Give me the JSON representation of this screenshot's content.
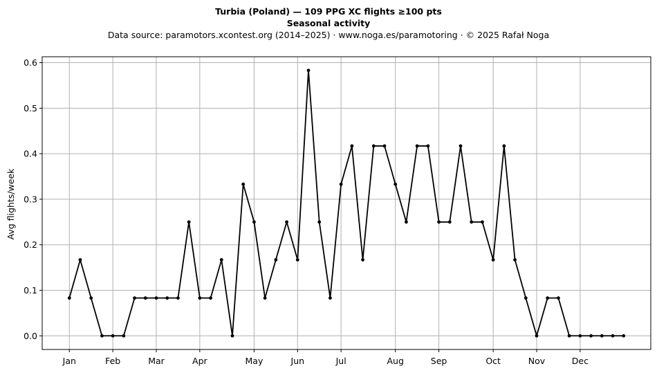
{
  "chart_data": {
    "type": "line",
    "title": "Turbia (Poland)  —  109 PPG XC flights ≥100 pts",
    "subtitle": "Seasonal activity",
    "source_line": "Data source: paramotors.xcontest.org (2014–2025)  ·  www.noga.es/paramotoring  ·  © 2025 Rafał Noga",
    "xlabel": "",
    "ylabel": "Avg flights/week",
    "x_unit": "week of year",
    "xlim": [
      -1.5,
      54.5
    ],
    "ylim": [
      -0.03,
      0.613
    ],
    "grid": true,
    "legend": "none",
    "line_color": "#000000",
    "grid_color": "#b0b0b0",
    "x_ticks": [
      {
        "label": "Jan",
        "week": 1
      },
      {
        "label": "Feb",
        "week": 5
      },
      {
        "label": "Mar",
        "week": 9
      },
      {
        "label": "Apr",
        "week": 13
      },
      {
        "label": "May",
        "week": 18
      },
      {
        "label": "Jun",
        "week": 22
      },
      {
        "label": "Jul",
        "week": 26
      },
      {
        "label": "Aug",
        "week": 31
      },
      {
        "label": "Sep",
        "week": 35
      },
      {
        "label": "Oct",
        "week": 40
      },
      {
        "label": "Nov",
        "week": 44
      },
      {
        "label": "Dec",
        "week": 48
      }
    ],
    "y_ticks": [
      {
        "label": "0.0",
        "value": 0.0
      },
      {
        "label": "0.1",
        "value": 0.1
      },
      {
        "label": "0.2",
        "value": 0.2
      },
      {
        "label": "0.3",
        "value": 0.3
      },
      {
        "label": "0.4",
        "value": 0.4
      },
      {
        "label": "0.5",
        "value": 0.5
      },
      {
        "label": "0.6",
        "value": 0.6
      }
    ],
    "series": [
      {
        "x": [
          1,
          2,
          3,
          4,
          5,
          6,
          7,
          8,
          9,
          10,
          11,
          12,
          13,
          14,
          15,
          16,
          17,
          18,
          19,
          20,
          21,
          22,
          23,
          24,
          25,
          26,
          27,
          28,
          29,
          30,
          31,
          32,
          33,
          34,
          35,
          36,
          37,
          38,
          39,
          40,
          41,
          42,
          43,
          44,
          45,
          46,
          47,
          48,
          49,
          50,
          51,
          52
        ],
        "values": [
          0.083,
          0.167,
          0.083,
          0.0,
          0.0,
          0.0,
          0.083,
          0.083,
          0.083,
          0.083,
          0.083,
          0.25,
          0.083,
          0.083,
          0.167,
          0.0,
          0.333,
          0.25,
          0.083,
          0.167,
          0.25,
          0.167,
          0.583,
          0.25,
          0.083,
          0.333,
          0.417,
          0.167,
          0.417,
          0.417,
          0.333,
          0.25,
          0.417,
          0.417,
          0.25,
          0.25,
          0.417,
          0.25,
          0.25,
          0.167,
          0.417,
          0.167,
          0.083,
          0.0,
          0.083,
          0.083,
          0.0,
          0.0,
          0.0,
          0.0,
          0.0,
          0.0
        ]
      }
    ]
  }
}
